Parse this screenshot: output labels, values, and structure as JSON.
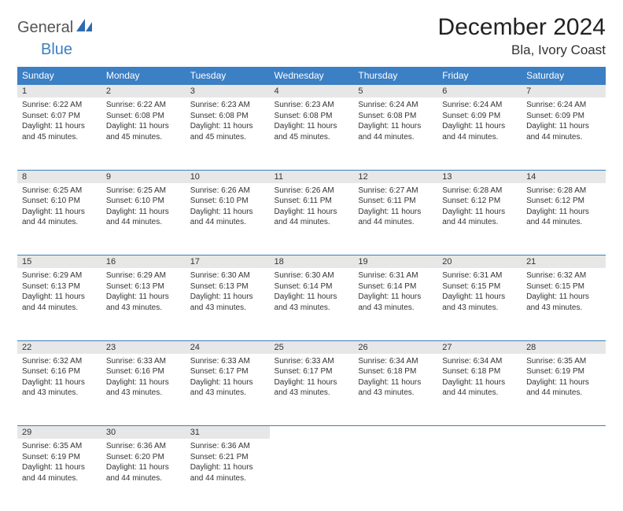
{
  "brand": {
    "general": "General",
    "blue": "Blue"
  },
  "title": "December 2024",
  "location": "Bla, Ivory Coast",
  "columns": [
    "Sunday",
    "Monday",
    "Tuesday",
    "Wednesday",
    "Thursday",
    "Friday",
    "Saturday"
  ],
  "colors": {
    "header_bg": "#3b7fc4",
    "header_fg": "#ffffff",
    "daynum_bg": "#e7e7e7",
    "rule": "#3b7fc4",
    "text": "#333333",
    "background": "#ffffff"
  },
  "typography": {
    "title_fontsize": 30,
    "location_fontsize": 17,
    "header_fontsize": 12,
    "daynum_fontsize": 11,
    "cell_fontsize": 10
  },
  "weeks": [
    [
      {
        "n": "1",
        "sr": "Sunrise: 6:22 AM",
        "ss": "Sunset: 6:07 PM",
        "d1": "Daylight: 11 hours",
        "d2": "and 45 minutes."
      },
      {
        "n": "2",
        "sr": "Sunrise: 6:22 AM",
        "ss": "Sunset: 6:08 PM",
        "d1": "Daylight: 11 hours",
        "d2": "and 45 minutes."
      },
      {
        "n": "3",
        "sr": "Sunrise: 6:23 AM",
        "ss": "Sunset: 6:08 PM",
        "d1": "Daylight: 11 hours",
        "d2": "and 45 minutes."
      },
      {
        "n": "4",
        "sr": "Sunrise: 6:23 AM",
        "ss": "Sunset: 6:08 PM",
        "d1": "Daylight: 11 hours",
        "d2": "and 45 minutes."
      },
      {
        "n": "5",
        "sr": "Sunrise: 6:24 AM",
        "ss": "Sunset: 6:08 PM",
        "d1": "Daylight: 11 hours",
        "d2": "and 44 minutes."
      },
      {
        "n": "6",
        "sr": "Sunrise: 6:24 AM",
        "ss": "Sunset: 6:09 PM",
        "d1": "Daylight: 11 hours",
        "d2": "and 44 minutes."
      },
      {
        "n": "7",
        "sr": "Sunrise: 6:24 AM",
        "ss": "Sunset: 6:09 PM",
        "d1": "Daylight: 11 hours",
        "d2": "and 44 minutes."
      }
    ],
    [
      {
        "n": "8",
        "sr": "Sunrise: 6:25 AM",
        "ss": "Sunset: 6:10 PM",
        "d1": "Daylight: 11 hours",
        "d2": "and 44 minutes."
      },
      {
        "n": "9",
        "sr": "Sunrise: 6:25 AM",
        "ss": "Sunset: 6:10 PM",
        "d1": "Daylight: 11 hours",
        "d2": "and 44 minutes."
      },
      {
        "n": "10",
        "sr": "Sunrise: 6:26 AM",
        "ss": "Sunset: 6:10 PM",
        "d1": "Daylight: 11 hours",
        "d2": "and 44 minutes."
      },
      {
        "n": "11",
        "sr": "Sunrise: 6:26 AM",
        "ss": "Sunset: 6:11 PM",
        "d1": "Daylight: 11 hours",
        "d2": "and 44 minutes."
      },
      {
        "n": "12",
        "sr": "Sunrise: 6:27 AM",
        "ss": "Sunset: 6:11 PM",
        "d1": "Daylight: 11 hours",
        "d2": "and 44 minutes."
      },
      {
        "n": "13",
        "sr": "Sunrise: 6:28 AM",
        "ss": "Sunset: 6:12 PM",
        "d1": "Daylight: 11 hours",
        "d2": "and 44 minutes."
      },
      {
        "n": "14",
        "sr": "Sunrise: 6:28 AM",
        "ss": "Sunset: 6:12 PM",
        "d1": "Daylight: 11 hours",
        "d2": "and 44 minutes."
      }
    ],
    [
      {
        "n": "15",
        "sr": "Sunrise: 6:29 AM",
        "ss": "Sunset: 6:13 PM",
        "d1": "Daylight: 11 hours",
        "d2": "and 44 minutes."
      },
      {
        "n": "16",
        "sr": "Sunrise: 6:29 AM",
        "ss": "Sunset: 6:13 PM",
        "d1": "Daylight: 11 hours",
        "d2": "and 43 minutes."
      },
      {
        "n": "17",
        "sr": "Sunrise: 6:30 AM",
        "ss": "Sunset: 6:13 PM",
        "d1": "Daylight: 11 hours",
        "d2": "and 43 minutes."
      },
      {
        "n": "18",
        "sr": "Sunrise: 6:30 AM",
        "ss": "Sunset: 6:14 PM",
        "d1": "Daylight: 11 hours",
        "d2": "and 43 minutes."
      },
      {
        "n": "19",
        "sr": "Sunrise: 6:31 AM",
        "ss": "Sunset: 6:14 PM",
        "d1": "Daylight: 11 hours",
        "d2": "and 43 minutes."
      },
      {
        "n": "20",
        "sr": "Sunrise: 6:31 AM",
        "ss": "Sunset: 6:15 PM",
        "d1": "Daylight: 11 hours",
        "d2": "and 43 minutes."
      },
      {
        "n": "21",
        "sr": "Sunrise: 6:32 AM",
        "ss": "Sunset: 6:15 PM",
        "d1": "Daylight: 11 hours",
        "d2": "and 43 minutes."
      }
    ],
    [
      {
        "n": "22",
        "sr": "Sunrise: 6:32 AM",
        "ss": "Sunset: 6:16 PM",
        "d1": "Daylight: 11 hours",
        "d2": "and 43 minutes."
      },
      {
        "n": "23",
        "sr": "Sunrise: 6:33 AM",
        "ss": "Sunset: 6:16 PM",
        "d1": "Daylight: 11 hours",
        "d2": "and 43 minutes."
      },
      {
        "n": "24",
        "sr": "Sunrise: 6:33 AM",
        "ss": "Sunset: 6:17 PM",
        "d1": "Daylight: 11 hours",
        "d2": "and 43 minutes."
      },
      {
        "n": "25",
        "sr": "Sunrise: 6:33 AM",
        "ss": "Sunset: 6:17 PM",
        "d1": "Daylight: 11 hours",
        "d2": "and 43 minutes."
      },
      {
        "n": "26",
        "sr": "Sunrise: 6:34 AM",
        "ss": "Sunset: 6:18 PM",
        "d1": "Daylight: 11 hours",
        "d2": "and 43 minutes."
      },
      {
        "n": "27",
        "sr": "Sunrise: 6:34 AM",
        "ss": "Sunset: 6:18 PM",
        "d1": "Daylight: 11 hours",
        "d2": "and 44 minutes."
      },
      {
        "n": "28",
        "sr": "Sunrise: 6:35 AM",
        "ss": "Sunset: 6:19 PM",
        "d1": "Daylight: 11 hours",
        "d2": "and 44 minutes."
      }
    ],
    [
      {
        "n": "29",
        "sr": "Sunrise: 6:35 AM",
        "ss": "Sunset: 6:19 PM",
        "d1": "Daylight: 11 hours",
        "d2": "and 44 minutes."
      },
      {
        "n": "30",
        "sr": "Sunrise: 6:36 AM",
        "ss": "Sunset: 6:20 PM",
        "d1": "Daylight: 11 hours",
        "d2": "and 44 minutes."
      },
      {
        "n": "31",
        "sr": "Sunrise: 6:36 AM",
        "ss": "Sunset: 6:21 PM",
        "d1": "Daylight: 11 hours",
        "d2": "and 44 minutes."
      },
      null,
      null,
      null,
      null
    ]
  ]
}
